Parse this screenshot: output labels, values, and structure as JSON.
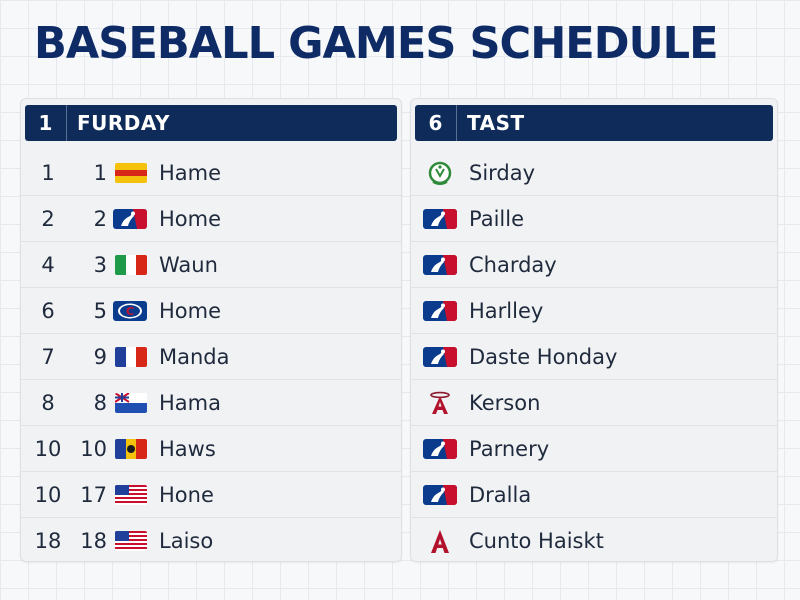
{
  "title": "BASEBALL GAMES SCHEDULE",
  "left": {
    "header_num": "1",
    "header_label": "FURDAY",
    "rows": [
      {
        "a": "1",
        "b": "1",
        "icon": "yellow-red-flag-icon",
        "name": "Hame"
      },
      {
        "a": "2",
        "b": "2",
        "icon": "mlb-logo-icon",
        "name": "Home"
      },
      {
        "a": "4",
        "b": "3",
        "icon": "italy-flag-icon",
        "name": "Waun"
      },
      {
        "a": "6",
        "b": "5",
        "icon": "c-logo-icon",
        "name": "Home"
      },
      {
        "a": "7",
        "b": "9",
        "icon": "france-flag-icon",
        "name": "Manda"
      },
      {
        "a": "8",
        "b": "8",
        "icon": "blue-ensign-flag-icon",
        "name": "Hama"
      },
      {
        "a": "10",
        "b": "10",
        "icon": "tricolor-emblem-flag-icon",
        "name": "Haws"
      },
      {
        "a": "10",
        "b": "17",
        "icon": "us-flag-icon",
        "name": "Hone"
      },
      {
        "a": "18",
        "b": "18",
        "icon": "us-flag-icon",
        "name": "Laiso"
      }
    ]
  },
  "right": {
    "header_num": "6",
    "header_label": "TAST",
    "rows": [
      {
        "icon": "green-wreath-logo-icon",
        "name": "Sirday"
      },
      {
        "icon": "mlb-logo-icon",
        "name": "Paille"
      },
      {
        "icon": "mlb-logo-icon",
        "name": "Charday"
      },
      {
        "icon": "mlb-logo-icon",
        "name": "Harlley"
      },
      {
        "icon": "mlb-logo-icon",
        "name": "Daste Honday"
      },
      {
        "icon": "angels-a-logo-icon",
        "name": "Kerson"
      },
      {
        "icon": "mlb-logo-icon",
        "name": "Parnery"
      },
      {
        "icon": "mlb-logo-icon",
        "name": "Dralla"
      },
      {
        "icon": "red-a-logo-icon",
        "name": "Cunto Haiskt"
      }
    ]
  },
  "colors": {
    "title": "#0f2b66",
    "header_bg": "#0f2b5a",
    "mlb_blue": "#0b3b8c",
    "mlb_red": "#c8102e"
  }
}
